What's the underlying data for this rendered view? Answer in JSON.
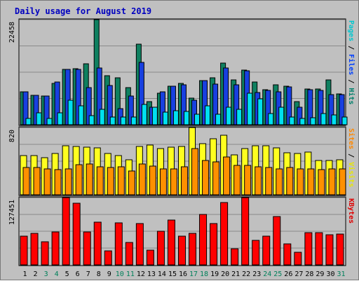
{
  "chart_data": {
    "type": "bar",
    "title": "Daily usage for August 2019",
    "categories": [
      "1",
      "2",
      "3",
      "4",
      "5",
      "6",
      "7",
      "8",
      "9",
      "10",
      "11",
      "12",
      "13",
      "14",
      "15",
      "16",
      "17",
      "18",
      "19",
      "20",
      "21",
      "22",
      "23",
      "24",
      "25",
      "26",
      "27",
      "28",
      "29",
      "30",
      "31"
    ],
    "weekend_days": [
      "3",
      "4",
      "10",
      "11",
      "17",
      "18",
      "24",
      "25",
      "31"
    ],
    "panels": [
      {
        "name": "hits",
        "max_label": "22458",
        "ymax": 22458,
        "right_label_parts": [
          {
            "text": "Pages",
            "color": "#00c8d0"
          },
          {
            "text": " / ",
            "color": "#000000"
          },
          {
            "text": "Files",
            "color": "#0040ff"
          },
          {
            "text": " / ",
            "color": "#000000"
          },
          {
            "text": "Hits",
            "color": "#00806b"
          }
        ],
        "series": [
          {
            "name": "Hits",
            "color": "#0f8060",
            "values": [
              7100,
              6300,
              6200,
              8800,
              11900,
              12000,
              13000,
              22458,
              10500,
              10000,
              8000,
              17200,
              4900,
              6700,
              8300,
              8800,
              5700,
              9400,
              10000,
              13200,
              9600,
              11700,
              9200,
              7500,
              8600,
              8300,
              4900,
              7600,
              7600,
              9600,
              6600
            ]
          },
          {
            "name": "Files",
            "color": "#1840e0",
            "values": [
              7100,
              6300,
              6100,
              9100,
              11800,
              11800,
              8000,
              12200,
              8400,
              3500,
              6200,
              13300,
              3800,
              7100,
              8300,
              8600,
              5200,
              9400,
              8700,
              12100,
              8600,
              11500,
              6900,
              7300,
              7000,
              8100,
              3800,
              7500,
              7300,
              6400,
              6400
            ]
          },
          {
            "name": "Pages",
            "color": "#00e0f0",
            "values": [
              1300,
              2600,
              1300,
              2600,
              5300,
              4100,
              1900,
              3300,
              1600,
              1600,
              1700,
              4400,
              3700,
              2700,
              3000,
              2900,
              2200,
              4100,
              2200,
              3800,
              3300,
              6700,
              5600,
              2400,
              3800,
              1700,
              1400,
              1500,
              2400,
              2100,
              1700
            ]
          }
        ]
      },
      {
        "name": "visits",
        "max_label": "820",
        "ymax": 820,
        "right_label_parts": [
          {
            "text": "Sites",
            "color": "#ff8800"
          },
          {
            "text": " / ",
            "color": "#000000"
          },
          {
            "text": "Visits",
            "color": "#e8e800"
          }
        ],
        "series": [
          {
            "name": "Visits",
            "color": "#ffff20",
            "values": [
              480,
              480,
              450,
              500,
              600,
              590,
              580,
              570,
              500,
              480,
              430,
              590,
              610,
              560,
              580,
              590,
              820,
              620,
              680,
              730,
              490,
              560,
              600,
              600,
              570,
              510,
              500,
              520,
              420,
              420,
              430
            ]
          },
          {
            "name": "Sites",
            "color": "#ff9000",
            "values": [
              330,
              330,
              320,
              310,
              320,
              370,
              380,
              340,
              330,
              340,
              290,
              380,
              350,
              320,
              320,
              340,
              560,
              420,
              400,
              460,
              360,
              360,
              340,
              330,
              320,
              330,
              320,
              320,
              310,
              320,
              320
            ]
          }
        ]
      },
      {
        "name": "kbytes",
        "max_label": "127451",
        "ymax": 127451,
        "right_label_parts": [
          {
            "text": "KBytes",
            "color": "#e00000"
          }
        ],
        "series": [
          {
            "name": "KBytes",
            "color": "#ff0000",
            "values": [
              55000,
              60000,
              44000,
              62000,
              127451,
              117000,
              62000,
              81000,
              26000,
              80000,
              43000,
              78000,
              28000,
              64000,
              85000,
              54000,
              60000,
              95000,
              78000,
              118000,
              30000,
              127451,
              47000,
              54000,
              91000,
              40000,
              24000,
              61000,
              61000,
              57000,
              58000
            ]
          }
        ]
      }
    ]
  }
}
